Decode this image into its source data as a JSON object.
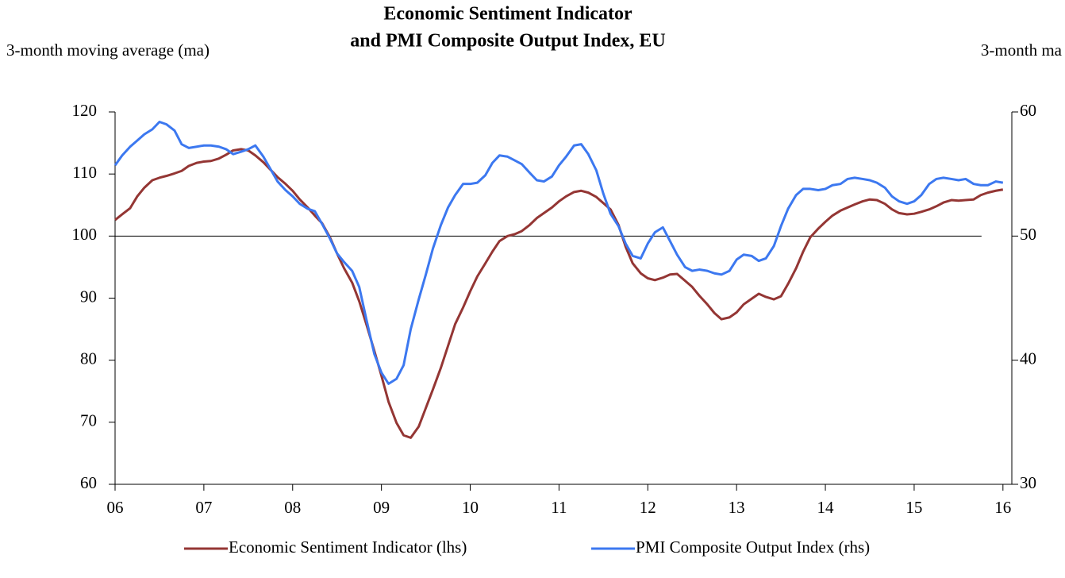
{
  "chart_data": {
    "type": "line",
    "title": [
      "Economic Sentiment Indicator",
      "and PMI Composite Output Index, EU"
    ],
    "y_label": "3-month moving average (ma)",
    "y2_label": "3-month ma",
    "x": [
      2006,
      2006.08,
      2006.17,
      2006.25,
      2006.33,
      2006.42,
      2006.5,
      2006.58,
      2006.67,
      2006.75,
      2006.83,
      2006.92,
      2007,
      2007.08,
      2007.17,
      2007.25,
      2007.33,
      2007.42,
      2007.5,
      2007.58,
      2007.67,
      2007.75,
      2007.83,
      2007.92,
      2008,
      2008.08,
      2008.17,
      2008.25,
      2008.33,
      2008.42,
      2008.5,
      2008.58,
      2008.67,
      2008.75,
      2008.83,
      2008.92,
      2009,
      2009.08,
      2009.17,
      2009.25,
      2009.33,
      2009.42,
      2009.5,
      2009.58,
      2009.67,
      2009.75,
      2009.83,
      2009.92,
      2010,
      2010.08,
      2010.17,
      2010.25,
      2010.33,
      2010.42,
      2010.5,
      2010.58,
      2010.67,
      2010.75,
      2010.83,
      2010.92,
      2011,
      2011.08,
      2011.17,
      2011.25,
      2011.33,
      2011.42,
      2011.5,
      2011.58,
      2011.67,
      2011.75,
      2011.83,
      2011.92,
      2012,
      2012.08,
      2012.17,
      2012.25,
      2012.33,
      2012.42,
      2012.5,
      2012.58,
      2012.67,
      2012.75,
      2012.83,
      2012.92,
      2013,
      2013.08,
      2013.17,
      2013.25,
      2013.33,
      2013.42,
      2013.5,
      2013.58,
      2013.67,
      2013.75,
      2013.83,
      2013.92,
      2014,
      2014.08,
      2014.17,
      2014.25,
      2014.33,
      2014.42,
      2014.5,
      2014.58,
      2014.67,
      2014.75,
      2014.83,
      2014.92,
      2015,
      2015.08,
      2015.17,
      2015.25,
      2015.33,
      2015.42,
      2015.5,
      2015.58,
      2015.67,
      2015.75,
      2015.83,
      2015.92,
      2016
    ],
    "series": [
      {
        "name": "Economic Sentiment Indicator (lhs)",
        "color": "#943634",
        "values": [
          102.6,
          103.5,
          104.5,
          106.4,
          107.8,
          109.0,
          109.4,
          109.7,
          110.1,
          110.5,
          111.3,
          111.8,
          112.0,
          112.1,
          112.5,
          113.1,
          113.8,
          114.0,
          113.8,
          113.0,
          111.9,
          110.7,
          109.5,
          108.4,
          107.3,
          105.9,
          104.6,
          103.3,
          102.1,
          99.8,
          97.2,
          94.8,
          92.5,
          89.5,
          85.8,
          81.5,
          77.5,
          73.3,
          69.9,
          67.9,
          67.5,
          69.3,
          72.3,
          75.3,
          78.8,
          82.3,
          85.8,
          88.5,
          91.1,
          93.5,
          95.6,
          97.5,
          99.2,
          100.0,
          100.3,
          100.8,
          101.8,
          102.9,
          103.7,
          104.6,
          105.6,
          106.4,
          107.1,
          107.3,
          107.0,
          106.3,
          105.3,
          104.3,
          101.8,
          98.3,
          95.6,
          94.0,
          93.2,
          92.9,
          93.3,
          93.8,
          93.9,
          92.8,
          91.8,
          90.4,
          89.0,
          87.6,
          86.6,
          86.9,
          87.7,
          89.0,
          89.9,
          90.7,
          90.2,
          89.8,
          90.3,
          92.3,
          94.8,
          97.5,
          99.8,
          101.2,
          102.3,
          103.3,
          104.1,
          104.6,
          105.1,
          105.6,
          105.9,
          105.8,
          105.2,
          104.3,
          103.7,
          103.5,
          103.6,
          103.9,
          104.3,
          104.8,
          105.4,
          105.8,
          105.7,
          105.8,
          105.9,
          106.6,
          107.0,
          107.3,
          107.5
        ]
      },
      {
        "name": "PMI Composite Output Index (rhs)",
        "color": "#3c78f0",
        "axis": "y2",
        "values": [
          55.7,
          56.5,
          57.2,
          57.7,
          58.2,
          58.6,
          59.2,
          59.0,
          58.5,
          57.4,
          57.1,
          57.2,
          57.3,
          57.3,
          57.2,
          57.0,
          56.6,
          56.8,
          57.0,
          57.3,
          56.4,
          55.4,
          54.4,
          53.7,
          53.2,
          52.6,
          52.2,
          52.0,
          51.0,
          49.8,
          48.6,
          47.9,
          47.2,
          45.9,
          43.3,
          40.5,
          39.0,
          38.1,
          38.5,
          39.6,
          42.5,
          44.9,
          46.9,
          49.0,
          50.9,
          52.3,
          53.3,
          54.2,
          54.2,
          54.3,
          54.9,
          55.9,
          56.5,
          56.4,
          56.1,
          55.8,
          55.1,
          54.5,
          54.4,
          54.8,
          55.7,
          56.4,
          57.3,
          57.4,
          56.6,
          55.3,
          53.4,
          51.8,
          50.8,
          49.4,
          48.4,
          48.2,
          49.4,
          50.3,
          50.7,
          49.6,
          48.5,
          47.5,
          47.2,
          47.3,
          47.2,
          47.0,
          46.9,
          47.2,
          48.1,
          48.5,
          48.4,
          48.0,
          48.2,
          49.2,
          50.8,
          52.2,
          53.3,
          53.8,
          53.8,
          53.7,
          53.8,
          54.1,
          54.2,
          54.6,
          54.7,
          54.6,
          54.5,
          54.3,
          53.9,
          53.2,
          52.8,
          52.6,
          52.8,
          53.3,
          54.2,
          54.6,
          54.7,
          54.6,
          54.5,
          54.6,
          54.2,
          54.1,
          54.1,
          54.4,
          54.3
        ]
      }
    ],
    "xlim": [
      2006,
      2016.1
    ],
    "xticks": [
      {
        "value": 2006,
        "label": "06"
      },
      {
        "value": 2007,
        "label": "07"
      },
      {
        "value": 2008,
        "label": "08"
      },
      {
        "value": 2009,
        "label": "09"
      },
      {
        "value": 2010,
        "label": "10"
      },
      {
        "value": 2011,
        "label": "11"
      },
      {
        "value": 2012,
        "label": "12"
      },
      {
        "value": 2013,
        "label": "13"
      },
      {
        "value": 2014,
        "label": "14"
      },
      {
        "value": 2015,
        "label": "15"
      },
      {
        "value": 2016,
        "label": "16"
      }
    ],
    "ylim": [
      60,
      120
    ],
    "yticks": [
      60,
      70,
      80,
      90,
      100,
      110,
      120
    ],
    "y2lim": [
      30,
      60
    ],
    "y2ticks": [
      30,
      40,
      50,
      60
    ],
    "reference_line": 100,
    "legend": "bottom"
  }
}
